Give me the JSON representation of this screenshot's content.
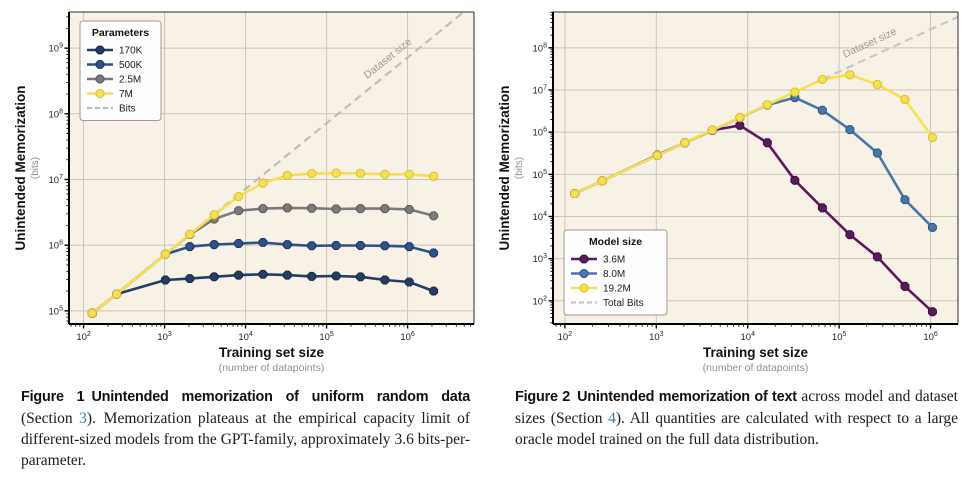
{
  "page": {
    "background": "#ffffff"
  },
  "chart_data": [
    {
      "id": "fig1",
      "type": "line",
      "xlabel": "Training set size",
      "xlabel_sub": "(number of datapoints)",
      "ylabel": "Unintended Memorization",
      "ylabel_sub": "(bits)",
      "x_scale": "log",
      "y_scale": "log",
      "xlim_log": [
        1.82,
        6.82
      ],
      "ylim_log": [
        4.8,
        9.55
      ],
      "xticks_exp": [
        2,
        3,
        4,
        5,
        6
      ],
      "yticks_exp": [
        5,
        6,
        7,
        8,
        9
      ],
      "grid": true,
      "plot_bg": "#f8f1e6",
      "grid_color": "#c9c4b8",
      "legend": {
        "title": "Parameters",
        "position": "top-left"
      },
      "reference_line": {
        "label": "Bits",
        "coeff": 719,
        "color": "#bcbcbc",
        "annotation": "Dataset size",
        "annotation_log_x": 5.78
      },
      "x": [
        128,
        256,
        1024,
        2048,
        4096,
        8192,
        16384,
        32768,
        65536,
        131072,
        262144,
        524288,
        1048576,
        2097152
      ],
      "series": [
        {
          "name": "170K",
          "color": "#253c63",
          "edge": "#182843",
          "values": [
            92000,
            180000,
            295000,
            310000,
            330000,
            350000,
            360000,
            350000,
            335000,
            340000,
            330000,
            295000,
            275000,
            200000
          ]
        },
        {
          "name": "500K",
          "color": "#2e5188",
          "edge": "#1d3560",
          "values": [
            92000,
            180000,
            730000,
            950000,
            1020000,
            1060000,
            1100000,
            1020000,
            980000,
            990000,
            990000,
            980000,
            950000,
            760000
          ]
        },
        {
          "name": "2.5M",
          "color": "#7a7a7a",
          "edge": "#585858",
          "values": [
            92000,
            180000,
            730000,
            1450000,
            2500000,
            3350000,
            3600000,
            3700000,
            3650000,
            3550000,
            3600000,
            3600000,
            3500000,
            2800000
          ]
        },
        {
          "name": "7M",
          "color": "#f6e04e",
          "edge": "#d8c02f",
          "values": [
            92000,
            180000,
            730000,
            1470000,
            2900000,
            5500000,
            8800000,
            11500000,
            12300000,
            12500000,
            12400000,
            12000000,
            12000000,
            11200000
          ]
        }
      ]
    },
    {
      "id": "fig2",
      "type": "line",
      "xlabel": "Training set size",
      "xlabel_sub": "(number of datapoints)",
      "ylabel": "Unintended Memorization",
      "ylabel_sub": "(bits)",
      "x_scale": "log",
      "y_scale": "log",
      "xlim_log": [
        1.87,
        6.3
      ],
      "ylim_log": [
        1.45,
        8.85
      ],
      "xticks_exp": [
        2,
        3,
        4,
        5,
        6
      ],
      "yticks_exp": [
        2,
        3,
        4,
        5,
        6,
        7,
        8
      ],
      "grid": true,
      "plot_bg": "#f8f1e6",
      "grid_color": "#c9c4b8",
      "legend": {
        "title": "Model size",
        "position": "bottom-left"
      },
      "reference_line": {
        "label": "Total Bits",
        "coeff": 273,
        "color": "#c6c6c6",
        "annotation": "Dataset size",
        "annotation_log_x": 5.35
      },
      "x": [
        128,
        256,
        1024,
        2048,
        4096,
        8192,
        16384,
        32768,
        65536,
        131072,
        262144,
        524288,
        1048576
      ],
      "series": [
        {
          "name": "3.6M",
          "color": "#5c1a5e",
          "edge": "#3a0e3c",
          "values": [
            35000,
            70000,
            285000,
            560000,
            1100000,
            1450000,
            560000,
            72000,
            16000,
            3700,
            1100,
            220,
            55
          ]
        },
        {
          "name": "8.0M",
          "color": "#4677a8",
          "edge": "#2e5680",
          "values": [
            35000,
            70000,
            280000,
            555000,
            1110000,
            2200000,
            4400000,
            6600000,
            3300000,
            1150000,
            320000,
            25000,
            5500
          ]
        },
        {
          "name": "19.2M",
          "color": "#f6e04e",
          "edge": "#d8c02f",
          "values": [
            35000,
            70000,
            280000,
            560000,
            1120000,
            2240000,
            4480000,
            8900000,
            17800000,
            23000000,
            13500000,
            6000000,
            750000
          ]
        }
      ]
    }
  ],
  "captions": [
    {
      "segments": [
        {
          "t": "Figure 1 Unintended memorization of uniform random data ",
          "cls": "head"
        },
        {
          "t": "(Section ",
          "cls": "body"
        },
        {
          "t": "3",
          "cls": "link"
        },
        {
          "t": "). Memorization plateaus at the empirical capacity limit of different-sized models from the GPT-family, approximately 3.6 bits-per-parameter.",
          "cls": "body"
        }
      ]
    },
    {
      "segments": [
        {
          "t": "Figure 2 Unintended memorization of text ",
          "cls": "head"
        },
        {
          "t": "across model and dataset sizes (Section ",
          "cls": "body"
        },
        {
          "t": "4",
          "cls": "link"
        },
        {
          "t": "). All quantities are calculated with respect to a large oracle model trained on the full data distribution.",
          "cls": "body"
        }
      ]
    }
  ]
}
